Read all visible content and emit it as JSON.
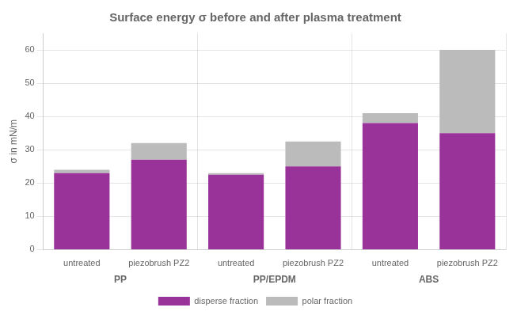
{
  "chart_data": {
    "type": "bar",
    "stacked": true,
    "title": "Surface energy σ before and after plasma treatment",
    "ylabel": "σ in mN/m",
    "categories": [
      "untreated",
      "piezobrush PZ2",
      "untreated",
      "piezobrush PZ2",
      "untreated",
      "piezobrush PZ2"
    ],
    "groups": [
      "PP",
      "PP/EPDM",
      "ABS"
    ],
    "series": [
      {
        "name": "disperse fraction",
        "color": "#993399",
        "values": [
          23,
          27,
          22.5,
          25,
          38,
          35
        ]
      },
      {
        "name": "polar fraction",
        "color": "#BBBBBB",
        "values": [
          1,
          5,
          0.5,
          7.5,
          3,
          25
        ]
      }
    ],
    "ylim": [
      0,
      65
    ],
    "yticks": [
      0,
      10,
      20,
      30,
      40,
      50,
      60
    ],
    "grid": true,
    "legend": "bottom"
  }
}
